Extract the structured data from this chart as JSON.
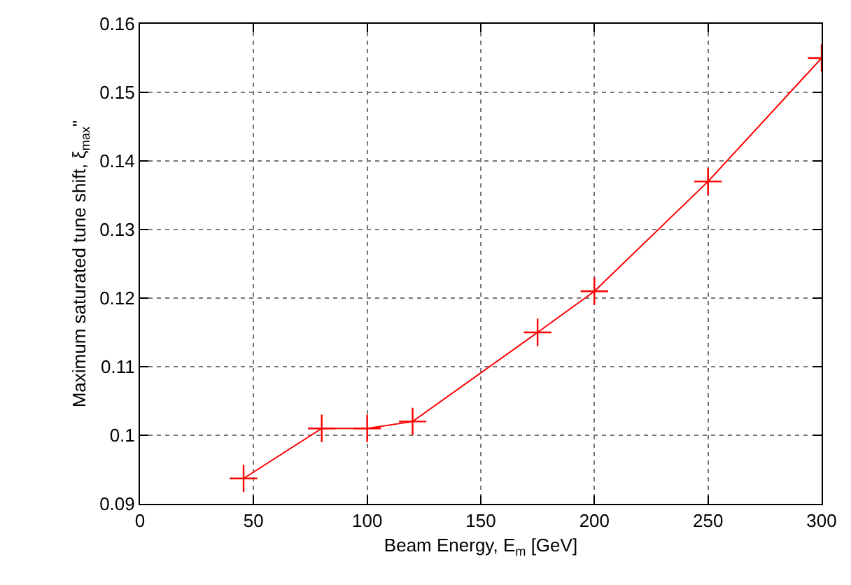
{
  "chart_data": {
    "type": "line",
    "xlabel": "Beam Energy, E$_{m}$ [GeV]",
    "ylabel": "Maximum saturated tune shift, ξ$_{max}$\"",
    "x": [
      45.6,
      80,
      100,
      120,
      175,
      200,
      250,
      300
    ],
    "series": [
      {
        "color": "#ff0000",
        "values": [
          0.0937,
          0.101,
          0.101,
          0.102,
          0.115,
          0.121,
          0.137,
          0.155
        ]
      }
    ],
    "xlim": [
      0,
      300
    ],
    "xticks": [
      0,
      50,
      100,
      150,
      200,
      250,
      300
    ],
    "ylim": [
      0.09,
      0.16
    ],
    "yticks": [
      0.09,
      0.1,
      0.11,
      0.12,
      0.13,
      0.14,
      0.15,
      0.16
    ],
    "grid": true,
    "marker": "cross",
    "line_style": "solid"
  }
}
